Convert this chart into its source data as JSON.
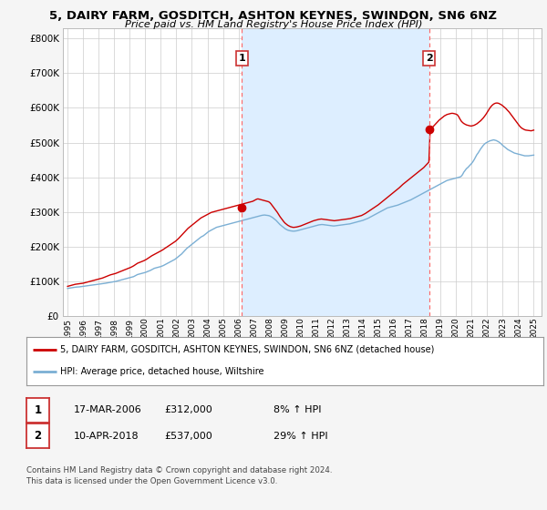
{
  "title": "5, DAIRY FARM, GOSDITCH, ASHTON KEYNES, SWINDON, SN6 6NZ",
  "subtitle": "Price paid vs. HM Land Registry's House Price Index (HPI)",
  "y_values": [
    0,
    100000,
    200000,
    300000,
    400000,
    500000,
    600000,
    700000,
    800000
  ],
  "ylim": [
    0,
    830000
  ],
  "xlim_start": 1994.7,
  "xlim_end": 2025.5,
  "purchase1_year": 2006.21,
  "purchase1_price": 312000,
  "purchase2_year": 2018.27,
  "purchase2_price": 537000,
  "line_color_property": "#cc0000",
  "line_color_hpi": "#7bafd4",
  "shade_color": "#ddeeff",
  "vline_color": "#ff6666",
  "background_color": "#f5f5f5",
  "plot_bg_color": "#ffffff",
  "legend_line1": "5, DAIRY FARM, GOSDITCH, ASHTON KEYNES, SWINDON, SN6 6NZ (detached house)",
  "legend_line2": "HPI: Average price, detached house, Wiltshire",
  "footnote": "Contains HM Land Registry data © Crown copyright and database right 2024.\nThis data is licensed under the Open Government Licence v3.0.",
  "table_row1": [
    "1",
    "17-MAR-2006",
    "£312,000",
    "8% ↑ HPI"
  ],
  "table_row2": [
    "2",
    "10-APR-2018",
    "£537,000",
    "29% ↑ HPI"
  ],
  "hpi_x": [
    1995.0,
    1995.083,
    1995.167,
    1995.25,
    1995.333,
    1995.417,
    1995.5,
    1995.583,
    1995.667,
    1995.75,
    1995.833,
    1995.917,
    1996.0,
    1996.083,
    1996.167,
    1996.25,
    1996.333,
    1996.417,
    1996.5,
    1996.583,
    1996.667,
    1996.75,
    1996.833,
    1996.917,
    1997.0,
    1997.083,
    1997.167,
    1997.25,
    1997.333,
    1997.417,
    1997.5,
    1997.583,
    1997.667,
    1997.75,
    1997.833,
    1997.917,
    1998.0,
    1998.083,
    1998.167,
    1998.25,
    1998.333,
    1998.417,
    1998.5,
    1998.583,
    1998.667,
    1998.75,
    1998.833,
    1998.917,
    1999.0,
    1999.083,
    1999.167,
    1999.25,
    1999.333,
    1999.417,
    1999.5,
    1999.583,
    1999.667,
    1999.75,
    1999.833,
    1999.917,
    2000.0,
    2000.083,
    2000.167,
    2000.25,
    2000.333,
    2000.417,
    2000.5,
    2000.583,
    2000.667,
    2000.75,
    2000.833,
    2000.917,
    2001.0,
    2001.083,
    2001.167,
    2001.25,
    2001.333,
    2001.417,
    2001.5,
    2001.583,
    2001.667,
    2001.75,
    2001.833,
    2001.917,
    2002.0,
    2002.083,
    2002.167,
    2002.25,
    2002.333,
    2002.417,
    2002.5,
    2002.583,
    2002.667,
    2002.75,
    2002.833,
    2002.917,
    2003.0,
    2003.083,
    2003.167,
    2003.25,
    2003.333,
    2003.417,
    2003.5,
    2003.583,
    2003.667,
    2003.75,
    2003.833,
    2003.917,
    2004.0,
    2004.083,
    2004.167,
    2004.25,
    2004.333,
    2004.417,
    2004.5,
    2004.583,
    2004.667,
    2004.75,
    2004.833,
    2004.917,
    2005.0,
    2005.083,
    2005.167,
    2005.25,
    2005.333,
    2005.417,
    2005.5,
    2005.583,
    2005.667,
    2005.75,
    2005.833,
    2005.917,
    2006.0,
    2006.083,
    2006.167,
    2006.25,
    2006.333,
    2006.417,
    2006.5,
    2006.583,
    2006.667,
    2006.75,
    2006.833,
    2006.917,
    2007.0,
    2007.083,
    2007.167,
    2007.25,
    2007.333,
    2007.417,
    2007.5,
    2007.583,
    2007.667,
    2007.75,
    2007.833,
    2007.917,
    2008.0,
    2008.083,
    2008.167,
    2008.25,
    2008.333,
    2008.417,
    2008.5,
    2008.583,
    2008.667,
    2008.75,
    2008.833,
    2008.917,
    2009.0,
    2009.083,
    2009.167,
    2009.25,
    2009.333,
    2009.417,
    2009.5,
    2009.583,
    2009.667,
    2009.75,
    2009.833,
    2009.917,
    2010.0,
    2010.083,
    2010.167,
    2010.25,
    2010.333,
    2010.417,
    2010.5,
    2010.583,
    2010.667,
    2010.75,
    2010.833,
    2010.917,
    2011.0,
    2011.083,
    2011.167,
    2011.25,
    2011.333,
    2011.417,
    2011.5,
    2011.583,
    2011.667,
    2011.75,
    2011.833,
    2011.917,
    2012.0,
    2012.083,
    2012.167,
    2012.25,
    2012.333,
    2012.417,
    2012.5,
    2012.583,
    2012.667,
    2012.75,
    2012.833,
    2012.917,
    2013.0,
    2013.083,
    2013.167,
    2013.25,
    2013.333,
    2013.417,
    2013.5,
    2013.583,
    2013.667,
    2013.75,
    2013.833,
    2013.917,
    2014.0,
    2014.083,
    2014.167,
    2014.25,
    2014.333,
    2014.417,
    2014.5,
    2014.583,
    2014.667,
    2014.75,
    2014.833,
    2014.917,
    2015.0,
    2015.083,
    2015.167,
    2015.25,
    2015.333,
    2015.417,
    2015.5,
    2015.583,
    2015.667,
    2015.75,
    2015.833,
    2015.917,
    2016.0,
    2016.083,
    2016.167,
    2016.25,
    2016.333,
    2016.417,
    2016.5,
    2016.583,
    2016.667,
    2016.75,
    2016.833,
    2016.917,
    2017.0,
    2017.083,
    2017.167,
    2017.25,
    2017.333,
    2017.417,
    2017.5,
    2017.583,
    2017.667,
    2017.75,
    2017.833,
    2017.917,
    2018.0,
    2018.083,
    2018.167,
    2018.25,
    2018.333,
    2018.417,
    2018.5,
    2018.583,
    2018.667,
    2018.75,
    2018.833,
    2018.917,
    2019.0,
    2019.083,
    2019.167,
    2019.25,
    2019.333,
    2019.417,
    2019.5,
    2019.583,
    2019.667,
    2019.75,
    2019.833,
    2019.917,
    2020.0,
    2020.083,
    2020.167,
    2020.25,
    2020.333,
    2020.417,
    2020.5,
    2020.583,
    2020.667,
    2020.75,
    2020.833,
    2020.917,
    2021.0,
    2021.083,
    2021.167,
    2021.25,
    2021.333,
    2021.417,
    2021.5,
    2021.583,
    2021.667,
    2021.75,
    2021.833,
    2021.917,
    2022.0,
    2022.083,
    2022.167,
    2022.25,
    2022.333,
    2022.417,
    2022.5,
    2022.583,
    2022.667,
    2022.75,
    2022.833,
    2022.917,
    2023.0,
    2023.083,
    2023.167,
    2023.25,
    2023.333,
    2023.417,
    2023.5,
    2023.583,
    2023.667,
    2023.75,
    2023.833,
    2023.917,
    2024.0,
    2024.083,
    2024.167,
    2024.25,
    2024.333,
    2024.417,
    2024.5,
    2024.583,
    2024.667,
    2024.75,
    2024.833,
    2024.917,
    2025.0
  ],
  "hpi_y": [
    80000,
    80500,
    81000,
    81800,
    82500,
    83000,
    83500,
    84000,
    84200,
    84500,
    85000,
    85500,
    86000,
    86500,
    87000,
    87500,
    88000,
    88500,
    89000,
    89500,
    90000,
    90500,
    91000,
    91500,
    92000,
    92500,
    93000,
    93500,
    94000,
    94800,
    95500,
    96200,
    97000,
    97800,
    98500,
    99000,
    99500,
    100000,
    101000,
    102000,
    103000,
    104000,
    105000,
    106000,
    107000,
    108000,
    109000,
    110000,
    111000,
    112000,
    113000,
    114000,
    116000,
    118000,
    120000,
    121000,
    122000,
    123000,
    124000,
    125000,
    126000,
    127500,
    129000,
    130500,
    132000,
    134000,
    136000,
    138000,
    139000,
    140000,
    141000,
    142000,
    143000,
    144500,
    146000,
    148000,
    150000,
    152000,
    154000,
    156000,
    158000,
    160000,
    162000,
    164000,
    167000,
    170000,
    173000,
    176000,
    179000,
    183000,
    187000,
    191000,
    195000,
    198000,
    201000,
    204000,
    207000,
    210000,
    213000,
    216000,
    219000,
    222000,
    225000,
    228000,
    230000,
    232000,
    235000,
    238000,
    241000,
    244000,
    246000,
    248000,
    250000,
    252000,
    254000,
    256000,
    257000,
    258000,
    259000,
    260000,
    261000,
    262000,
    263000,
    264000,
    265000,
    266000,
    267000,
    268000,
    269000,
    270000,
    271000,
    272000,
    273000,
    274000,
    275000,
    276000,
    277000,
    278000,
    279000,
    280000,
    281000,
    282000,
    283000,
    284000,
    285000,
    286000,
    287000,
    288000,
    289000,
    290000,
    290500,
    291000,
    291500,
    291000,
    290500,
    290000,
    289000,
    287000,
    285000,
    282000,
    279000,
    276000,
    272000,
    268000,
    264000,
    261000,
    258000,
    255000,
    252000,
    250000,
    248000,
    247000,
    246000,
    245500,
    245000,
    245000,
    245500,
    246000,
    247000,
    248000,
    249000,
    250000,
    251000,
    252000,
    253000,
    254000,
    255000,
    256000,
    257000,
    258000,
    259000,
    260000,
    261000,
    262000,
    263000,
    263500,
    264000,
    264000,
    263500,
    263000,
    262500,
    262000,
    261500,
    261000,
    260500,
    260000,
    260000,
    260500,
    261000,
    261500,
    262000,
    262500,
    263000,
    263500,
    264000,
    264500,
    265000,
    265500,
    266000,
    267000,
    268000,
    269000,
    270000,
    271000,
    272000,
    273000,
    274000,
    275000,
    276000,
    277500,
    279000,
    280500,
    282000,
    284000,
    286000,
    288000,
    290000,
    292000,
    294000,
    296000,
    298000,
    300000,
    302000,
    304000,
    306000,
    308000,
    310000,
    312000,
    313000,
    314000,
    315000,
    316000,
    317000,
    318000,
    319000,
    320000,
    321500,
    323000,
    324500,
    326000,
    327500,
    329000,
    330500,
    332000,
    333500,
    335000,
    337000,
    339000,
    341000,
    343000,
    345000,
    347000,
    349000,
    351000,
    353000,
    355000,
    357000,
    359000,
    361000,
    363000,
    365000,
    367000,
    369000,
    371000,
    373000,
    375000,
    377000,
    379000,
    381000,
    383000,
    385000,
    387000,
    389000,
    391000,
    392000,
    393000,
    394000,
    395000,
    396000,
    397000,
    398000,
    399000,
    400000,
    401000,
    403000,
    408000,
    415000,
    420000,
    425000,
    428000,
    432000,
    436000,
    440000,
    445000,
    451000,
    458000,
    465000,
    470000,
    476000,
    482000,
    487000,
    492000,
    496000,
    499000,
    501000,
    503000,
    505000,
    506000,
    507000,
    508000,
    507000,
    506000,
    504000,
    502000,
    499000,
    496000,
    492000,
    489000,
    486000,
    483000,
    480000,
    478000,
    476000,
    474000,
    472000,
    470000,
    469000,
    468000,
    467000,
    466000,
    465000,
    464000,
    463000,
    462000,
    462000,
    462000,
    462000,
    462500,
    463000,
    463500,
    464000
  ],
  "prop_x": [
    1995.0,
    1995.083,
    1995.167,
    1995.25,
    1995.333,
    1995.417,
    1995.5,
    1995.583,
    1995.667,
    1995.75,
    1995.833,
    1995.917,
    1996.0,
    1996.083,
    1996.167,
    1996.25,
    1996.333,
    1996.417,
    1996.5,
    1996.583,
    1996.667,
    1996.75,
    1996.833,
    1996.917,
    1997.0,
    1997.083,
    1997.167,
    1997.25,
    1997.333,
    1997.417,
    1997.5,
    1997.583,
    1997.667,
    1997.75,
    1997.833,
    1997.917,
    1998.0,
    1998.083,
    1998.167,
    1998.25,
    1998.333,
    1998.417,
    1998.5,
    1998.583,
    1998.667,
    1998.75,
    1998.833,
    1998.917,
    1999.0,
    1999.083,
    1999.167,
    1999.25,
    1999.333,
    1999.417,
    1999.5,
    1999.583,
    1999.667,
    1999.75,
    1999.833,
    1999.917,
    2000.0,
    2000.083,
    2000.167,
    2000.25,
    2000.333,
    2000.417,
    2000.5,
    2000.583,
    2000.667,
    2000.75,
    2000.833,
    2000.917,
    2001.0,
    2001.083,
    2001.167,
    2001.25,
    2001.333,
    2001.417,
    2001.5,
    2001.583,
    2001.667,
    2001.75,
    2001.833,
    2001.917,
    2002.0,
    2002.083,
    2002.167,
    2002.25,
    2002.333,
    2002.417,
    2002.5,
    2002.583,
    2002.667,
    2002.75,
    2002.833,
    2002.917,
    2003.0,
    2003.083,
    2003.167,
    2003.25,
    2003.333,
    2003.417,
    2003.5,
    2003.583,
    2003.667,
    2003.75,
    2003.833,
    2003.917,
    2004.0,
    2004.083,
    2004.167,
    2004.25,
    2004.333,
    2004.417,
    2004.5,
    2004.583,
    2004.667,
    2004.75,
    2004.833,
    2004.917,
    2005.0,
    2005.083,
    2005.167,
    2005.25,
    2005.333,
    2005.417,
    2005.5,
    2005.583,
    2005.667,
    2005.75,
    2005.833,
    2005.917,
    2006.0,
    2006.083,
    2006.167,
    2006.25,
    2006.333,
    2006.417,
    2006.5,
    2006.583,
    2006.667,
    2006.75,
    2006.833,
    2006.917,
    2007.0,
    2007.083,
    2007.167,
    2007.25,
    2007.333,
    2007.417,
    2007.5,
    2007.583,
    2007.667,
    2007.75,
    2007.833,
    2007.917,
    2008.0,
    2008.083,
    2008.167,
    2008.25,
    2008.333,
    2008.417,
    2008.5,
    2008.583,
    2008.667,
    2008.75,
    2008.833,
    2008.917,
    2009.0,
    2009.083,
    2009.167,
    2009.25,
    2009.333,
    2009.417,
    2009.5,
    2009.583,
    2009.667,
    2009.75,
    2009.833,
    2009.917,
    2010.0,
    2010.083,
    2010.167,
    2010.25,
    2010.333,
    2010.417,
    2010.5,
    2010.583,
    2010.667,
    2010.75,
    2010.833,
    2010.917,
    2011.0,
    2011.083,
    2011.167,
    2011.25,
    2011.333,
    2011.417,
    2011.5,
    2011.583,
    2011.667,
    2011.75,
    2011.833,
    2011.917,
    2012.0,
    2012.083,
    2012.167,
    2012.25,
    2012.333,
    2012.417,
    2012.5,
    2012.583,
    2012.667,
    2012.75,
    2012.833,
    2012.917,
    2013.0,
    2013.083,
    2013.167,
    2013.25,
    2013.333,
    2013.417,
    2013.5,
    2013.583,
    2013.667,
    2013.75,
    2013.833,
    2013.917,
    2014.0,
    2014.083,
    2014.167,
    2014.25,
    2014.333,
    2014.417,
    2014.5,
    2014.583,
    2014.667,
    2014.75,
    2014.833,
    2014.917,
    2015.0,
    2015.083,
    2015.167,
    2015.25,
    2015.333,
    2015.417,
    2015.5,
    2015.583,
    2015.667,
    2015.75,
    2015.833,
    2015.917,
    2016.0,
    2016.083,
    2016.167,
    2016.25,
    2016.333,
    2016.417,
    2016.5,
    2016.583,
    2016.667,
    2016.75,
    2016.833,
    2016.917,
    2017.0,
    2017.083,
    2017.167,
    2017.25,
    2017.333,
    2017.417,
    2017.5,
    2017.583,
    2017.667,
    2017.75,
    2017.833,
    2017.917,
    2018.0,
    2018.083,
    2018.167,
    2018.25,
    2018.333,
    2018.417,
    2018.5,
    2018.583,
    2018.667,
    2018.75,
    2018.833,
    2018.917,
    2019.0,
    2019.083,
    2019.167,
    2019.25,
    2019.333,
    2019.417,
    2019.5,
    2019.583,
    2019.667,
    2019.75,
    2019.833,
    2019.917,
    2020.0,
    2020.083,
    2020.167,
    2020.25,
    2020.333,
    2020.417,
    2020.5,
    2020.583,
    2020.667,
    2020.75,
    2020.833,
    2020.917,
    2021.0,
    2021.083,
    2021.167,
    2021.25,
    2021.333,
    2021.417,
    2021.5,
    2021.583,
    2021.667,
    2021.75,
    2021.833,
    2021.917,
    2022.0,
    2022.083,
    2022.167,
    2022.25,
    2022.333,
    2022.417,
    2022.5,
    2022.583,
    2022.667,
    2022.75,
    2022.833,
    2022.917,
    2023.0,
    2023.083,
    2023.167,
    2023.25,
    2023.333,
    2023.417,
    2023.5,
    2023.583,
    2023.667,
    2023.75,
    2023.833,
    2023.917,
    2024.0,
    2024.083,
    2024.167,
    2024.25,
    2024.333,
    2024.417,
    2024.5,
    2024.583,
    2024.667,
    2024.75,
    2024.833,
    2024.917,
    2025.0
  ],
  "prop_y": [
    86000,
    87000,
    88000,
    89000,
    90000,
    91000,
    92000,
    92500,
    93000,
    93500,
    94000,
    94500,
    95000,
    96000,
    97000,
    98000,
    99000,
    100000,
    101000,
    102000,
    103000,
    104000,
    105000,
    106000,
    107000,
    108000,
    109000,
    110000,
    111500,
    113000,
    114500,
    116000,
    117500,
    119000,
    120000,
    121000,
    122000,
    123000,
    124500,
    126000,
    127500,
    129000,
    130500,
    132000,
    133500,
    135000,
    136500,
    138000,
    139500,
    141000,
    143000,
    145000,
    147500,
    150000,
    152500,
    154000,
    155500,
    157000,
    158500,
    160000,
    162000,
    164000,
    166500,
    169000,
    171500,
    174000,
    176000,
    178000,
    180000,
    182000,
    184000,
    186000,
    188000,
    190000,
    192500,
    195000,
    197500,
    200000,
    202500,
    205000,
    207500,
    210000,
    212500,
    215000,
    218000,
    221500,
    225000,
    229000,
    233000,
    237000,
    241000,
    245000,
    249000,
    253000,
    256000,
    259000,
    262000,
    265000,
    268000,
    271000,
    274000,
    277000,
    280000,
    283000,
    285000,
    287000,
    289000,
    291000,
    293000,
    295000,
    297000,
    299000,
    300000,
    301000,
    302000,
    303000,
    304000,
    305000,
    306000,
    307000,
    308000,
    309000,
    310000,
    311000,
    312000,
    313000,
    314000,
    315000,
    316000,
    317000,
    318000,
    319000,
    320000,
    321000,
    322000,
    323000,
    324000,
    325000,
    326000,
    327000,
    328000,
    329000,
    330000,
    331000,
    333000,
    335000,
    337000,
    338000,
    337000,
    336000,
    335000,
    334000,
    333000,
    332000,
    331000,
    330000,
    328000,
    324000,
    319000,
    314000,
    309000,
    304000,
    299000,
    293000,
    287000,
    282000,
    277000,
    272000,
    268000,
    265000,
    262000,
    260000,
    258000,
    257000,
    256000,
    256000,
    256500,
    257000,
    258000,
    259000,
    260000,
    261500,
    263000,
    264500,
    266000,
    267500,
    269000,
    270500,
    272000,
    273500,
    275000,
    276000,
    277000,
    278000,
    279000,
    279500,
    280000,
    279500,
    279000,
    278500,
    278000,
    277500,
    277000,
    276500,
    276000,
    275500,
    275000,
    275500,
    276000,
    276500,
    277000,
    277500,
    278000,
    278500,
    279000,
    279500,
    280000,
    280500,
    281000,
    282000,
    283000,
    284000,
    285000,
    286000,
    287000,
    288000,
    289000,
    290000,
    292000,
    294000,
    296000,
    298500,
    301000,
    303500,
    306000,
    308500,
    311000,
    313500,
    316000,
    318500,
    321000,
    324000,
    327000,
    330000,
    333000,
    336000,
    339000,
    342000,
    345000,
    348000,
    351000,
    354000,
    357000,
    360000,
    363000,
    366000,
    369500,
    373000,
    376500,
    380000,
    383000,
    386000,
    389000,
    392000,
    395000,
    398000,
    401000,
    404000,
    407000,
    410000,
    413000,
    416000,
    419000,
    422000,
    425000,
    428000,
    432000,
    436000,
    440000,
    444000,
    537000,
    541000,
    545000,
    549000,
    553000,
    557000,
    561000,
    565000,
    568000,
    571000,
    574000,
    577000,
    579000,
    581000,
    582000,
    583000,
    584000,
    584500,
    584000,
    583000,
    582000,
    580000,
    575000,
    568000,
    562000,
    558000,
    555000,
    553000,
    551000,
    550000,
    549000,
    548000,
    548000,
    549000,
    550000,
    552000,
    554000,
    557000,
    560000,
    563000,
    567000,
    571000,
    576000,
    581000,
    587000,
    593000,
    599000,
    604000,
    608000,
    611000,
    613000,
    614000,
    614000,
    613000,
    611000,
    609000,
    606000,
    603000,
    600000,
    596000,
    592000,
    588000,
    583000,
    578000,
    573000,
    568000,
    563000,
    558000,
    553000,
    548000,
    544000,
    541000,
    539000,
    537000,
    536000,
    535500,
    535000,
    534500,
    534000,
    535000,
    536000
  ]
}
